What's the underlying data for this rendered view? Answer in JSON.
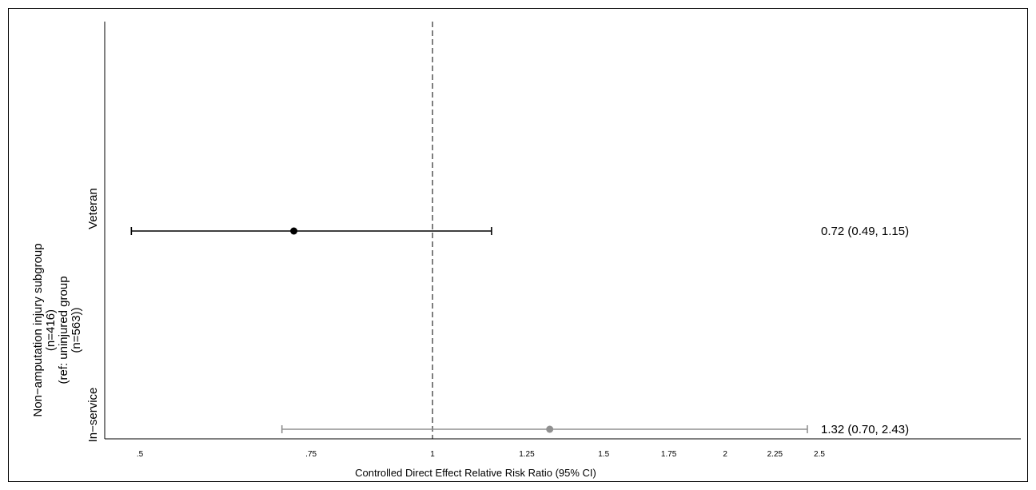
{
  "chart_data": {
    "type": "forest",
    "xlabel": "Controlled Direct Effect Relative Risk Ratio (95% CI)",
    "ylabel_lines": [
      "Non−amputation injury subgroup",
      "(n=416)",
      "(ref: uninjured group",
      "(n=563))"
    ],
    "xscale": "log",
    "xlim": [
      0.48,
      3.3
    ],
    "x_ticks": [
      {
        "value": 0.5,
        "label": ".5"
      },
      {
        "value": 0.75,
        "label": ".75"
      },
      {
        "value": 1,
        "label": "1"
      },
      {
        "value": 1.25,
        "label": "1.25"
      },
      {
        "value": 1.5,
        "label": "1.5"
      },
      {
        "value": 1.75,
        "label": "1.75"
      },
      {
        "value": 2,
        "label": "2"
      },
      {
        "value": 2.25,
        "label": "2.25"
      },
      {
        "value": 2.5,
        "label": "2.5"
      }
    ],
    "reference_line": 1,
    "rows": [
      {
        "category": "Veteran",
        "estimate": 0.72,
        "lower": 0.49,
        "upper": 1.15,
        "label": "0.72 (0.49, 1.15)",
        "color": "#000000"
      },
      {
        "category": "In−service",
        "estimate": 1.32,
        "lower": 0.7,
        "upper": 2.43,
        "label": "1.32 (0.70, 2.43)",
        "color": "#909090"
      }
    ]
  }
}
